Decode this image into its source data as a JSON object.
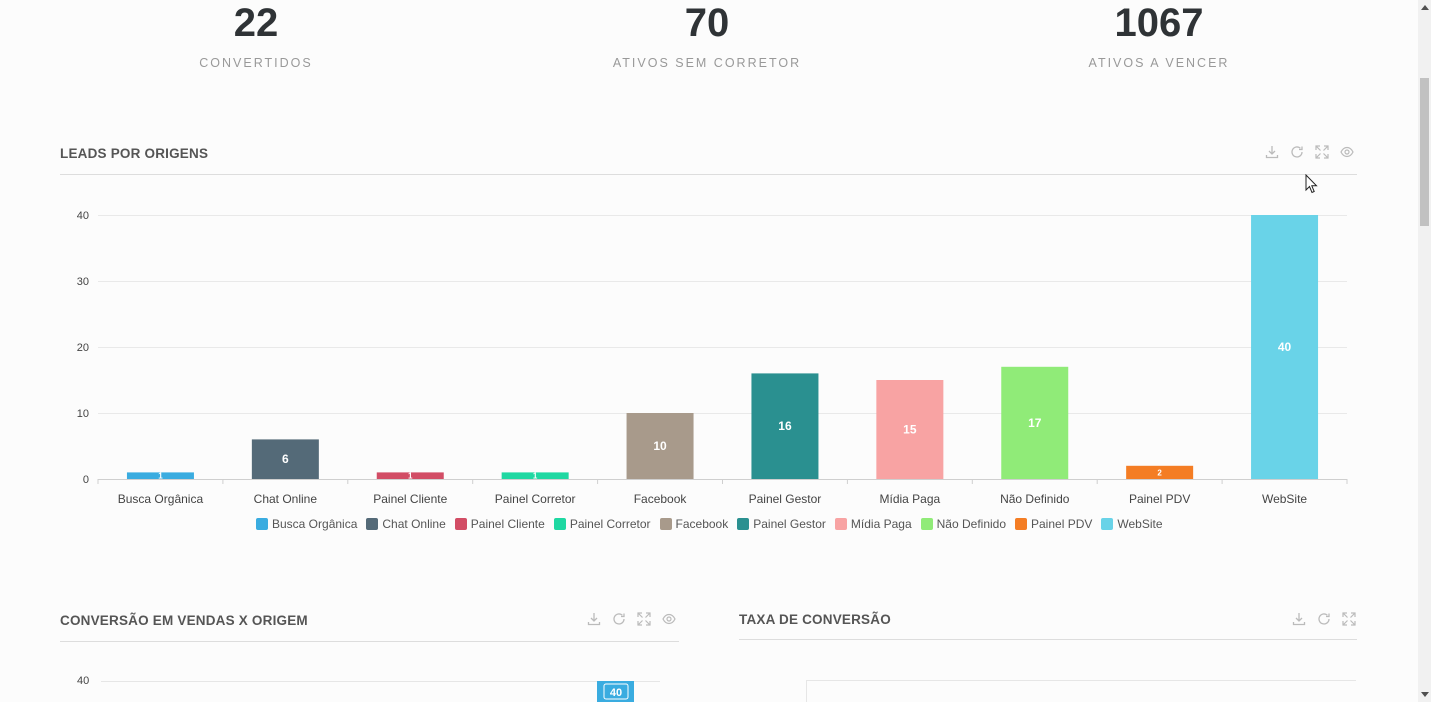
{
  "stats": [
    {
      "value": "22",
      "label": "CONVERTIDOS"
    },
    {
      "value": "70",
      "label": "ATIVOS SEM CORRETOR"
    },
    {
      "value": "1067",
      "label": "ATIVOS A VENCER"
    }
  ],
  "panels": {
    "leads": {
      "title": "LEADS POR ORIGENS",
      "tools": [
        "download-icon",
        "refresh-icon",
        "expand-icon",
        "eye-icon"
      ]
    },
    "conversao": {
      "title": "CONVERSÃO EM VENDAS X ORIGEM",
      "tools": [
        "download-icon",
        "refresh-icon",
        "expand-icon",
        "eye-icon"
      ],
      "top_tick": "40",
      "bar_label": "40"
    },
    "taxa": {
      "title": "TAXA DE CONVERSÃO",
      "tools": [
        "download-icon",
        "refresh-icon",
        "expand-icon"
      ]
    }
  },
  "chart_data": {
    "type": "bar",
    "title": "LEADS POR ORIGENS",
    "categories": [
      "Busca Orgânica",
      "Chat Online",
      "Painel Cliente",
      "Painel Corretor",
      "Facebook",
      "Painel Gestor",
      "Mídia Paga",
      "Não Definido",
      "Painel PDV",
      "WebSite"
    ],
    "values": [
      1,
      6,
      1,
      1,
      10,
      16,
      15,
      17,
      2,
      40
    ],
    "data_labels": [
      "1",
      "6",
      "1",
      "1",
      "10",
      "16",
      "15",
      "17",
      "2",
      "40"
    ],
    "colors": [
      "#3aace0",
      "#546a78",
      "#d24d65",
      "#1fd8a2",
      "#a89a8b",
      "#2a9090",
      "#f8a3a3",
      "#90eb78",
      "#f47d24",
      "#69d3e8"
    ],
    "yticks": [
      "0",
      "10",
      "20",
      "30",
      "40"
    ],
    "ylim": [
      0,
      40
    ],
    "grid": true,
    "legend": "bottom"
  }
}
